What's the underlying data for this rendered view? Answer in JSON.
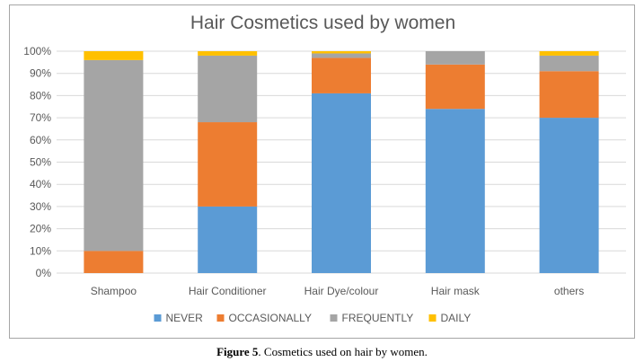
{
  "chart_data": {
    "type": "bar",
    "stacked": true,
    "title": "Hair Cosmetics used by women",
    "categories": [
      "Shampoo",
      "Hair Conditioner",
      "Hair Dye/colour",
      "Hair mask",
      "others"
    ],
    "series": [
      {
        "name": "NEVER",
        "color": "#5b9bd5",
        "values": [
          0,
          30,
          81,
          74,
          70
        ]
      },
      {
        "name": "OCCASIONALLY",
        "color": "#ed7d31",
        "values": [
          10,
          38,
          16,
          20,
          21
        ]
      },
      {
        "name": "FREQUENTLY",
        "color": "#a5a5a5",
        "values": [
          86,
          30,
          2,
          6,
          7
        ]
      },
      {
        "name": "DAILY",
        "color": "#ffc000",
        "values": [
          4,
          2,
          1,
          0,
          2
        ]
      }
    ],
    "ylim": [
      0,
      100
    ],
    "yticks": [
      "0%",
      "10%",
      "20%",
      "30%",
      "40%",
      "50%",
      "60%",
      "70%",
      "80%",
      "90%",
      "100%"
    ],
    "grid": true,
    "legend_position": "bottom"
  },
  "caption": {
    "label": "Figure 5",
    "text": ". Cosmetics used on hair by women."
  }
}
